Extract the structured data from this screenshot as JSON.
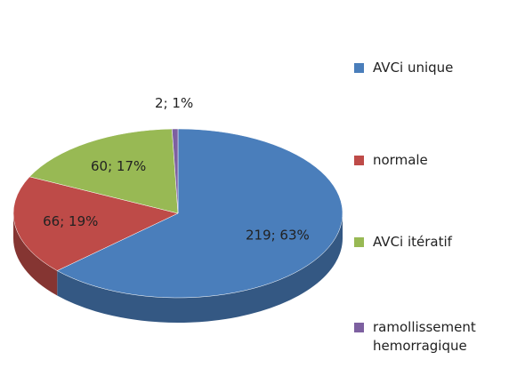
{
  "chart_data": {
    "type": "pie",
    "categories": [
      "AVCi unique",
      "normale",
      "AVCi itératif",
      "ramollissement hemorragique"
    ],
    "values": [
      219,
      66,
      60,
      2
    ],
    "value_labels": [
      "219; 63%",
      "66; 19%",
      "60; 17%",
      "2; 1%"
    ],
    "colors": [
      "#4a7ebb",
      "#be4b48",
      "#98b954",
      "#7d60a0"
    ],
    "legend": "right"
  }
}
